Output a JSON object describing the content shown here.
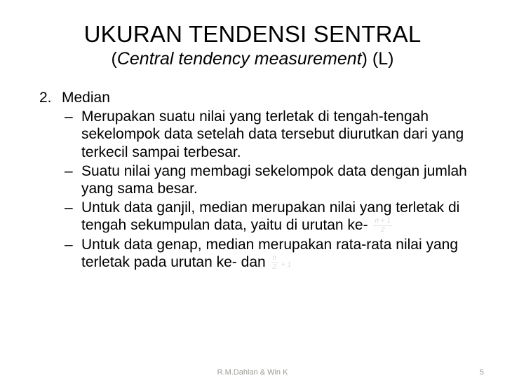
{
  "title": "UKURAN TENDENSI SENTRAL",
  "subtitle_italic": "Central tendency measurement",
  "subtitle_suffix": " (L)",
  "list_number": "2.",
  "list_heading": "Median",
  "bullets": {
    "dash": "–",
    "b1": "Merupakan suatu nilai yang terletak di tengah-tengah sekelompok data setelah data tersebut diurutkan dari yang terkecil sampai terbesar.",
    "b2": "Suatu nilai yang membagi sekelompok data dengan jumlah yang sama besar.",
    "b3_pre": "Untuk data ganjil, median merupakan nilai yang terletak di tengah sekumpulan data, yaitu di urutan ke-",
    "b4_pre": "Untuk data genap, median merupakan rata-rata nilai yang terletak pada urutan ke-    dan "
  },
  "formulas": {
    "f1_top": "n + 1",
    "f1_bot": "2",
    "f2_top": "n",
    "f2_bot": "2",
    "f2_suffix": " + 1"
  },
  "footer": {
    "author": "R.M.Dahlan & Win K",
    "page": "5"
  },
  "colors": {
    "text": "#000000",
    "background": "#ffffff",
    "pale": "#d9d9d9",
    "footer": "#9b9b95"
  },
  "fontsize": {
    "title": 33,
    "subtitle": 25,
    "body": 21,
    "footer": 11,
    "formula": 10
  }
}
